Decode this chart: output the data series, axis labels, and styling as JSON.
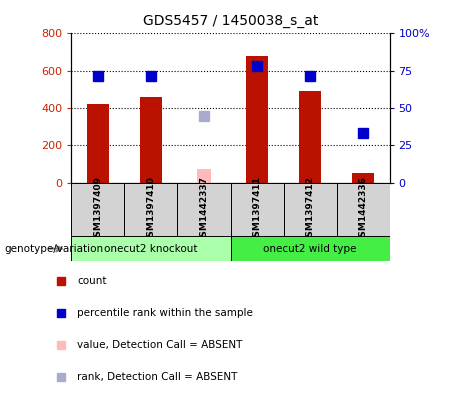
{
  "title": "GDS5457 / 1450038_s_at",
  "samples": [
    "GSM1397409",
    "GSM1397410",
    "GSM1442337",
    "GSM1397411",
    "GSM1397412",
    "GSM1442336"
  ],
  "bar_values": [
    420,
    460,
    null,
    680,
    490,
    50
  ],
  "bar_values_absent": [
    null,
    null,
    75,
    null,
    null,
    null
  ],
  "percentile_values": [
    570,
    570,
    null,
    625,
    570,
    265
  ],
  "percentile_absent": [
    null,
    null,
    355,
    null,
    null,
    null
  ],
  "bar_color": "#bb1100",
  "bar_color_absent": "#ffbbbb",
  "percentile_color": "#0000cc",
  "percentile_color_absent": "#aaaacc",
  "groups": [
    {
      "label": "onecut2 knockout",
      "start": 0,
      "end": 3,
      "color": "#aaffaa"
    },
    {
      "label": "onecut2 wild type",
      "start": 3,
      "end": 6,
      "color": "#44ee44"
    }
  ],
  "ylim_left": [
    0,
    800
  ],
  "ylim_right": [
    0,
    100
  ],
  "yticks_left": [
    0,
    200,
    400,
    600,
    800
  ],
  "yticks_right": [
    0,
    25,
    50,
    75,
    100
  ],
  "ytick_labels_left": [
    "0",
    "200",
    "400",
    "600",
    "800"
  ],
  "ytick_labels_right": [
    "0",
    "25",
    "50",
    "75",
    "100%"
  ],
  "left_tick_color": "#cc2200",
  "right_tick_color": "#0000cc",
  "legend_items": [
    {
      "label": "count",
      "color": "#bb1100"
    },
    {
      "label": "percentile rank within the sample",
      "color": "#0000cc"
    },
    {
      "label": "value, Detection Call = ABSENT",
      "color": "#ffbbbb"
    },
    {
      "label": "rank, Detection Call = ABSENT",
      "color": "#aaaacc"
    }
  ],
  "group_label": "genotype/variation",
  "bar_width": 0.4,
  "percentile_marker_size": 7,
  "absent_bar_width": 0.25
}
